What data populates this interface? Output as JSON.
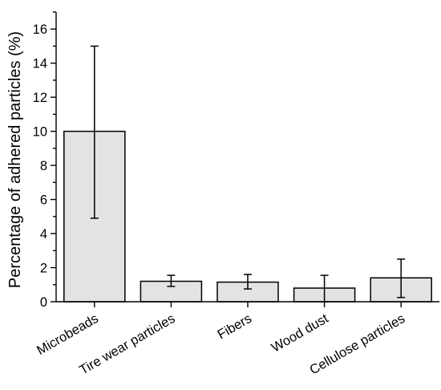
{
  "chart_data": {
    "type": "bar",
    "title": "",
    "xlabel": "",
    "ylabel": "Percentage of adhered particles (%)",
    "categories": [
      "Microbeads",
      "Tire wear particles",
      "Fibers",
      "Wood dust",
      "Cellulose particles"
    ],
    "values": [
      10.0,
      1.2,
      1.15,
      0.8,
      1.4
    ],
    "error_low": [
      4.9,
      0.9,
      0.75,
      0.0,
      0.25
    ],
    "error_high": [
      15.0,
      1.55,
      1.6,
      1.55,
      2.5
    ],
    "ylim": [
      0,
      17
    ],
    "yticks": [
      0,
      2,
      4,
      6,
      8,
      10,
      12,
      14,
      16
    ],
    "grid": false,
    "bar_color": "#e3e3e3",
    "edge_color": "#000000"
  }
}
